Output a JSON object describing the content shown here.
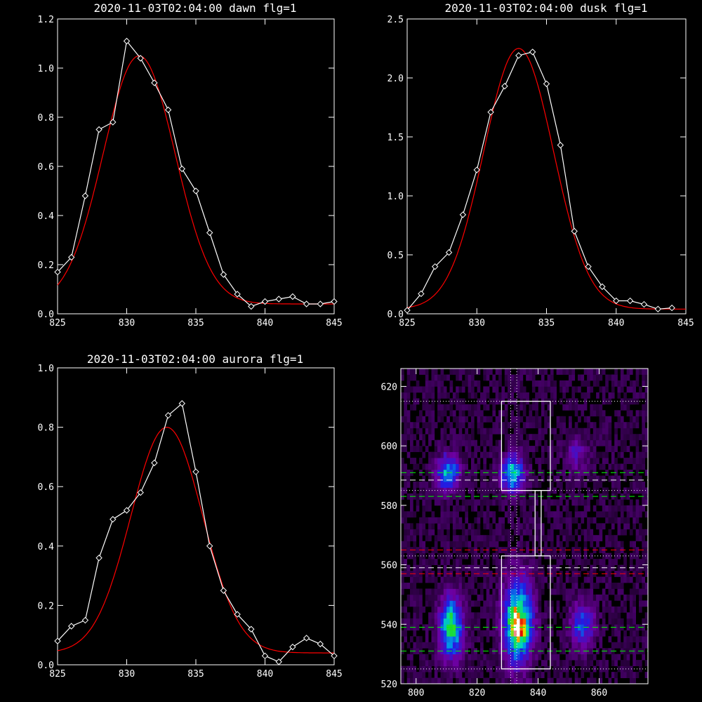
{
  "chart_data": [
    {
      "type": "line",
      "title": "2020-11-03T02:04:00 dawn flg=1",
      "xlim": [
        825,
        845
      ],
      "ylim": [
        0,
        1.2
      ],
      "xticks": [
        "825",
        "830",
        "835",
        "840",
        "845"
      ],
      "yticks": [
        "0.0",
        "0.2",
        "0.4",
        "0.6",
        "0.8",
        "1.0",
        "1.2"
      ],
      "series": [
        {
          "color": "#ffffff",
          "markers": "diamond",
          "x": [
            825,
            826,
            827,
            828,
            829,
            830,
            831,
            832,
            833,
            834,
            835,
            836,
            837,
            838,
            839,
            840,
            841,
            842,
            843,
            844,
            845
          ],
          "y": [
            0.17,
            0.23,
            0.48,
            0.75,
            0.78,
            1.11,
            1.04,
            0.94,
            0.83,
            0.59,
            0.5,
            0.33,
            0.16,
            0.08,
            0.03,
            0.05,
            0.06,
            0.07,
            0.04,
            0.04,
            0.05
          ]
        },
        {
          "color": "#ff0000",
          "markers": "none",
          "fit": "gaussian",
          "amplitude": 1.01,
          "center": 830.9,
          "sigma": 2.6,
          "offset": 0.04
        }
      ]
    },
    {
      "type": "line",
      "title": "2020-11-03T02:04:00 dusk flg=1",
      "xlim": [
        825,
        845
      ],
      "ylim": [
        0,
        2.5
      ],
      "xticks": [
        "825",
        "830",
        "835",
        "840",
        "845"
      ],
      "yticks": [
        "0.0",
        "0.5",
        "1.0",
        "1.5",
        "2.0",
        "2.5"
      ],
      "series": [
        {
          "color": "#ffffff",
          "markers": "diamond",
          "x": [
            825,
            826,
            827,
            828,
            829,
            830,
            831,
            832,
            833,
            834,
            835,
            836,
            837,
            838,
            839,
            840,
            841,
            842,
            843,
            844
          ],
          "y": [
            0.03,
            0.17,
            0.4,
            0.52,
            0.84,
            1.22,
            1.71,
            1.93,
            2.19,
            2.22,
            1.95,
            1.43,
            0.7,
            0.4,
            0.23,
            0.11,
            0.11,
            0.08,
            0.04,
            0.05
          ]
        },
        {
          "color": "#ff0000",
          "markers": "none",
          "fit": "gaussian",
          "amplitude": 2.21,
          "center": 833.0,
          "sigma": 2.5,
          "offset": 0.04
        }
      ]
    },
    {
      "type": "line",
      "title": "2020-11-03T02:04:00 aurora flg=1",
      "xlim": [
        825,
        845
      ],
      "ylim": [
        0,
        1.0
      ],
      "xticks": [
        "825",
        "830",
        "835",
        "840",
        "845"
      ],
      "yticks": [
        "0.0",
        "0.2",
        "0.4",
        "0.6",
        "0.8",
        "1.0"
      ],
      "series": [
        {
          "color": "#ffffff",
          "markers": "diamond",
          "x": [
            825,
            826,
            827,
            828,
            829,
            830,
            831,
            832,
            833,
            834,
            835,
            836,
            837,
            838,
            839,
            840,
            841,
            842,
            843,
            844,
            845
          ],
          "y": [
            0.08,
            0.13,
            0.15,
            0.36,
            0.49,
            0.52,
            0.58,
            0.68,
            0.84,
            0.88,
            0.65,
            0.4,
            0.25,
            0.17,
            0.12,
            0.03,
            0.01,
            0.06,
            0.09,
            0.07,
            0.03
          ]
        },
        {
          "color": "#ff0000",
          "markers": "none",
          "fit": "gaussian",
          "amplitude": 0.76,
          "center": 832.9,
          "sigma": 2.6,
          "offset": 0.04
        }
      ]
    },
    {
      "type": "heatmap",
      "title": "",
      "xlim": [
        795,
        876
      ],
      "ylim": [
        520,
        626
      ],
      "xticks": [
        "800",
        "820",
        "840",
        "860"
      ],
      "yticks": [
        "520",
        "540",
        "560",
        "580",
        "600",
        "620"
      ],
      "colormap": "rainbow (black-purple-blue-cyan-green-yellow-red-white)",
      "blobs": [
        {
          "x": 810,
          "y": 590,
          "sx": 2.5,
          "sy": 4,
          "amp": 0.45
        },
        {
          "x": 811,
          "y": 538,
          "sx": 2.5,
          "sy": 7,
          "amp": 0.55
        },
        {
          "x": 831,
          "y": 590,
          "sx": 2.5,
          "sy": 4,
          "amp": 0.5
        },
        {
          "x": 833,
          "y": 540,
          "sx": 3,
          "sy": 9,
          "amp": 0.72
        },
        {
          "x": 833,
          "y": 538,
          "sx": 1.5,
          "sy": 3,
          "amp": 0.38
        },
        {
          "x": 854,
          "y": 539,
          "sx": 2.5,
          "sy": 5,
          "amp": 0.32
        },
        {
          "x": 852,
          "y": 596,
          "sx": 2.5,
          "sy": 4,
          "amp": 0.16
        }
      ],
      "boxes": [
        {
          "x0": 828,
          "x1": 844,
          "y0": 585,
          "y1": 615
        },
        {
          "x0": 839,
          "x1": 841,
          "y0": 563,
          "y1": 585
        },
        {
          "x0": 828,
          "x1": 844,
          "y0": 525,
          "y1": 563
        }
      ],
      "hlines": [
        {
          "y": 615,
          "color": "#ffffff",
          "style": "dotted"
        },
        {
          "y": 591,
          "color": "#00ff00",
          "style": "dashed"
        },
        {
          "y": 588.5,
          "color": "#ffffff",
          "style": "dashed"
        },
        {
          "y": 585,
          "color": "#ffffff",
          "style": "dotted"
        },
        {
          "y": 583,
          "color": "#00ff00",
          "style": "dashed"
        },
        {
          "y": 565,
          "color": "#ff0000",
          "style": "dashed"
        },
        {
          "y": 563,
          "color": "#ffffff",
          "style": "dotted"
        },
        {
          "y": 559,
          "color": "#ffffff",
          "style": "dashed"
        },
        {
          "y": 557,
          "color": "#ff0000",
          "style": "dashed"
        },
        {
          "y": 539,
          "color": "#00ff00",
          "style": "dashed"
        },
        {
          "y": 531,
          "color": "#00ff00",
          "style": "dashed"
        },
        {
          "y": 525,
          "color": "#ffffff",
          "style": "dotted"
        }
      ],
      "vlines": [
        {
          "x": 831,
          "color": "#ffffff",
          "style": "dotted"
        },
        {
          "x": 833,
          "color": "#ffffff",
          "style": "dotted"
        }
      ]
    }
  ]
}
